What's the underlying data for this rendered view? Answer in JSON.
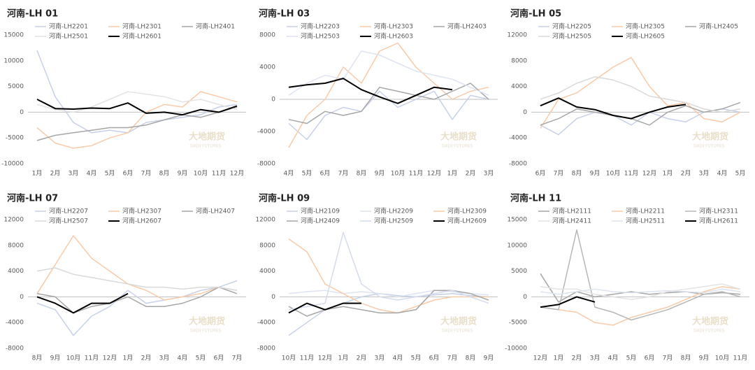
{
  "chart_data": [
    {
      "type": "line",
      "title": "河南-LH 01",
      "watermark": "大地期货",
      "watermark_en": "DADI FUTURES",
      "categories": [
        "1月",
        "2月",
        "3月",
        "4月",
        "5月",
        "6月",
        "7月",
        "8月",
        "9月",
        "10月",
        "11月",
        "12月"
      ],
      "ylim": [
        -10000,
        15000
      ],
      "yticks": [
        -10000,
        -5000,
        0,
        5000,
        10000,
        15000
      ],
      "series": [
        {
          "name": "河南-LH2201",
          "color": "#c6d0e8",
          "values": [
            12000,
            3000,
            -2000,
            -4000,
            -3500,
            -4000,
            -2000,
            -1500,
            -1000,
            -500,
            1000,
            1500
          ]
        },
        {
          "name": "河南-LH2301",
          "color": "#f8caa9",
          "values": [
            -3000,
            -6000,
            -7000,
            -6500,
            -5000,
            -4000,
            0,
            1500,
            1000,
            4000,
            3000,
            2000
          ]
        },
        {
          "name": "河南-LH2401",
          "color": "#a6a6a6",
          "values": [
            -5500,
            -4500,
            -4000,
            -3500,
            -3000,
            -3000,
            -2500,
            -1500,
            -500,
            -1000,
            0,
            1000
          ]
        },
        {
          "name": "河南-LH2501",
          "color": "#e3e3e3",
          "values": [
            1500,
            500,
            0,
            1000,
            2500,
            4000,
            3500,
            3000,
            2000,
            2500,
            1500,
            500
          ]
        },
        {
          "name": "河南-LH2601",
          "color": "#000000",
          "values": [
            2500,
            700,
            600,
            800,
            700,
            1800,
            -200,
            0,
            -500,
            500,
            0,
            1200
          ]
        }
      ]
    },
    {
      "type": "line",
      "title": "河南-LH 03",
      "watermark": "大地期货",
      "watermark_en": "DADI FUTURES",
      "categories": [
        "4月",
        "5月",
        "6月",
        "7月",
        "8月",
        "9月",
        "10月",
        "11月",
        "12月",
        "1月",
        "2月",
        "3月"
      ],
      "ylim": [
        -8000,
        8000
      ],
      "yticks": [
        -8000,
        -4000,
        0,
        4000,
        8000
      ],
      "series": [
        {
          "name": "河南-LH2203",
          "color": "#c6d0e8",
          "values": [
            -3000,
            -5000,
            -2000,
            -1000,
            -1500,
            1000,
            -1000,
            0,
            1000,
            -2500,
            500,
            0
          ]
        },
        {
          "name": "河南-LH2303",
          "color": "#f8caa9",
          "values": [
            -6000,
            -2000,
            0,
            4000,
            2000,
            6000,
            7000,
            4000,
            2000,
            0,
            1000,
            1500
          ]
        },
        {
          "name": "河南-LH2403",
          "color": "#a6a6a6",
          "values": [
            -2500,
            -3000,
            -1500,
            -2000,
            -1500,
            1500,
            1000,
            500,
            0,
            1000,
            2000,
            0
          ]
        },
        {
          "name": "河南-LH2503",
          "color": "#dde3f0",
          "values": [
            500,
            2000,
            3000,
            2500,
            6000,
            5500,
            4500,
            3500,
            3000,
            2500,
            1500,
            500
          ]
        },
        {
          "name": "河南-LH2603",
          "color": "#000000",
          "values": [
            1500,
            1800,
            2000,
            2600,
            1200,
            300,
            -500,
            500,
            1500,
            1200,
            null,
            null
          ]
        }
      ]
    },
    {
      "type": "line",
      "title": "河南-LH 05",
      "watermark": "大地期货",
      "watermark_en": "DADI FUTURES",
      "categories": [
        "6月",
        "7月",
        "8月",
        "9月",
        "10月",
        "11月",
        "12月",
        "1月",
        "2月",
        "3月",
        "4月",
        "5月"
      ],
      "ylim": [
        -8000,
        12000
      ],
      "yticks": [
        -8000,
        -4000,
        0,
        4000,
        8000,
        12000
      ],
      "series": [
        {
          "name": "河南-LH2205",
          "color": "#c6d0e8",
          "values": [
            -2000,
            -3500,
            -1000,
            0,
            -500,
            -2000,
            0,
            -1000,
            -1500,
            0,
            500,
            0
          ]
        },
        {
          "name": "河南-LH2305",
          "color": "#f8caa9",
          "values": [
            -2500,
            2000,
            3000,
            5000,
            7000,
            8500,
            4000,
            1000,
            1500,
            -1000,
            -1500,
            0
          ]
        },
        {
          "name": "河南-LH2405",
          "color": "#a6a6a6",
          "values": [
            -2000,
            -1000,
            500,
            0,
            -500,
            -1000,
            -2000,
            0,
            1000,
            0,
            500,
            1500
          ]
        },
        {
          "name": "河南-LH2505",
          "color": "#d9d9d9",
          "values": [
            2000,
            3000,
            4500,
            5500,
            5000,
            4000,
            2500,
            2000,
            1500,
            500,
            0,
            500
          ]
        },
        {
          "name": "河南-LH2605",
          "color": "#000000",
          "values": [
            1000,
            2200,
            800,
            400,
            -500,
            -1000,
            0,
            800,
            1200,
            null,
            null,
            null
          ]
        }
      ]
    },
    {
      "type": "line",
      "title": "河南-LH 07",
      "watermark": "大地期货",
      "watermark_en": "DADI FUTURES",
      "categories": [
        "8月",
        "9月",
        "10月",
        "11月",
        "12月",
        "1月",
        "2月",
        "3月",
        "4月",
        "5月",
        "6月",
        "7月"
      ],
      "ylim": [
        -8000,
        12000
      ],
      "yticks": [
        -8000,
        -4000,
        0,
        4000,
        8000,
        12000
      ],
      "series": [
        {
          "name": "河南-LH2207",
          "color": "#c6d0e8",
          "values": [
            -1000,
            -2000,
            -6000,
            -3000,
            -1500,
            1000,
            -1000,
            -500,
            0,
            1000,
            1500,
            2500
          ]
        },
        {
          "name": "河南-LH2307",
          "color": "#f8caa9",
          "values": [
            500,
            5000,
            9500,
            6000,
            4000,
            2000,
            1000,
            -500,
            0,
            500,
            1500,
            1000
          ]
        },
        {
          "name": "河南-LH2407",
          "color": "#a6a6a6",
          "values": [
            500,
            0,
            -2500,
            -1500,
            -1000,
            0,
            -1500,
            -1500,
            -1000,
            0,
            1500,
            500
          ]
        },
        {
          "name": "河南-LH2507",
          "color": "#d9d9d9",
          "values": [
            4000,
            4500,
            3500,
            3000,
            2500,
            2000,
            1500,
            1500,
            1200,
            1500,
            1500,
            1000
          ]
        },
        {
          "name": "河南-LH2607",
          "color": "#000000",
          "values": [
            0,
            -1000,
            -2500,
            -1000,
            -1000,
            500,
            null,
            null,
            null,
            null,
            null,
            null
          ]
        }
      ]
    },
    {
      "type": "line",
      "title": "河南-LH 09",
      "watermark": "大地期货",
      "watermark_en": "DADI FUTURES",
      "categories": [
        "10月",
        "11月",
        "12月",
        "1月",
        "2月",
        "3月",
        "4月",
        "5月",
        "6月",
        "7月",
        "8月",
        "9月"
      ],
      "ylim": [
        -8000,
        12000
      ],
      "yticks": [
        -8000,
        -4000,
        0,
        4000,
        8000,
        12000
      ],
      "series": [
        {
          "name": "河南-LH2109",
          "color": "#c6d0e8",
          "values": [
            -6000,
            -4000,
            -2000,
            -1000,
            0,
            500,
            200,
            0,
            300,
            500,
            200,
            0
          ]
        },
        {
          "name": "河南-LH2209",
          "color": "#dde3f0",
          "values": [
            500,
            800,
            1000,
            500,
            800,
            500,
            0,
            500,
            1000,
            800,
            500,
            300
          ]
        },
        {
          "name": "河南-LH2309",
          "color": "#f8caa9",
          "values": [
            9000,
            7000,
            2000,
            500,
            -1000,
            -2000,
            -2500,
            -1500,
            -500,
            0,
            0,
            0
          ]
        },
        {
          "name": "河南-LH2409",
          "color": "#a6a6a6",
          "values": [
            -1500,
            -3000,
            -2000,
            -1500,
            -2000,
            -2500,
            -2500,
            -2000,
            1000,
            1000,
            500,
            -500
          ]
        },
        {
          "name": "河南-LH2509",
          "color": "#d4dbed",
          "values": [
            -2000,
            -1500,
            -1000,
            10000,
            2000,
            0,
            -500,
            0,
            500,
            1000,
            0,
            -1000
          ]
        },
        {
          "name": "河南-LH2609",
          "color": "#000000",
          "values": [
            -2500,
            -1000,
            -2000,
            -1000,
            -1000,
            null,
            null,
            null,
            null,
            null,
            null,
            null
          ]
        }
      ]
    },
    {
      "type": "line",
      "title": "河南-LH 11",
      "watermark": "大地期货",
      "watermark_en": "DADI FUTURES",
      "categories": [
        "12月",
        "1月",
        "2月",
        "3月",
        "4月",
        "5月",
        "6月",
        "7月",
        "8月",
        "9月",
        "10月",
        "11月"
      ],
      "ylim": [
        -10000,
        15000
      ],
      "yticks": [
        -10000,
        -5000,
        0,
        5000,
        10000,
        15000
      ],
      "series": [
        {
          "name": "河南-LH2111",
          "color": "#a6a6a6",
          "values": [
            4500,
            -1000,
            1000,
            0,
            500,
            1000,
            500,
            800,
            1000,
            500,
            800,
            500
          ]
        },
        {
          "name": "河南-LH2211",
          "color": "#f8caa9",
          "values": [
            -2000,
            -2500,
            -3000,
            -5000,
            -5500,
            -4000,
            -3000,
            -2000,
            -500,
            1000,
            2000,
            1500
          ]
        },
        {
          "name": "河南-LH2311",
          "color": "#b7b7b7",
          "values": [
            -2000,
            -2500,
            13000,
            -2000,
            -3000,
            -4500,
            -3500,
            -2500,
            -1000,
            500,
            1000,
            0
          ]
        },
        {
          "name": "河南-LH2411",
          "color": "#e3e3e3",
          "values": [
            2000,
            1500,
            1500,
            500,
            0,
            -500,
            0,
            1000,
            1500,
            2000,
            2500,
            1500
          ]
        },
        {
          "name": "河南-LH2511",
          "color": "#dde3f0",
          "values": [
            1000,
            500,
            1000,
            1500,
            1000,
            800,
            1000,
            1200,
            1000,
            800,
            1500,
            1000
          ]
        },
        {
          "name": "河南-LH2611",
          "color": "#000000",
          "values": [
            -2000,
            -1500,
            0,
            -1000,
            null,
            null,
            null,
            null,
            null,
            null,
            null,
            null
          ]
        }
      ]
    }
  ]
}
